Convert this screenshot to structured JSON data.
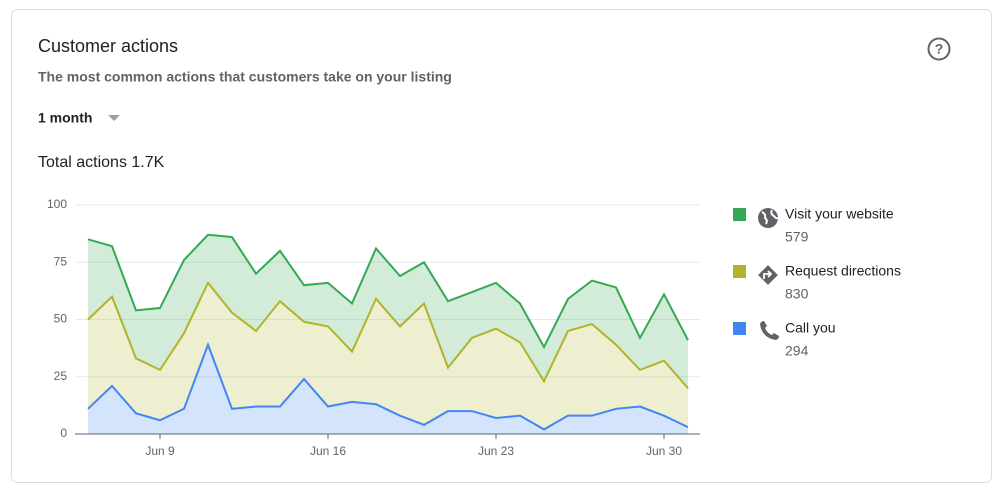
{
  "card": {
    "title": "Customer actions",
    "subtitle": "The most common actions that customers take on your listing",
    "period": "1 month"
  },
  "chart_data": {
    "type": "area",
    "stacked": true,
    "title": "Total actions 1.7K",
    "categories": [
      null,
      null,
      null,
      "Jun 9",
      null,
      null,
      null,
      null,
      null,
      null,
      "Jun 16",
      null,
      null,
      null,
      null,
      null,
      null,
      "Jun 23",
      null,
      null,
      null,
      null,
      null,
      null,
      "Jun 30",
      null
    ],
    "series": [
      {
        "name": "Visit your website",
        "color": "#34a853",
        "total": 579,
        "values": [
          35,
          22,
          21,
          27,
          32,
          21,
          33,
          25,
          22,
          16,
          19,
          21,
          22,
          22,
          18,
          29,
          20,
          20,
          17,
          15,
          14,
          19,
          25,
          14,
          29,
          21
        ]
      },
      {
        "name": "Request directions",
        "color": "#afb42b",
        "total": 830,
        "values": [
          39,
          39,
          24,
          22,
          33,
          27,
          42,
          33,
          46,
          25,
          35,
          22,
          46,
          39,
          53,
          19,
          32,
          39,
          32,
          21,
          37,
          40,
          28,
          16,
          24,
          17
        ]
      },
      {
        "name": "Call you",
        "color": "#4285f4",
        "total": 294,
        "values": [
          11,
          21,
          9,
          6,
          11,
          39,
          11,
          12,
          12,
          24,
          12,
          14,
          13,
          8,
          4,
          10,
          10,
          7,
          8,
          2,
          8,
          8,
          11,
          12,
          8,
          3
        ]
      }
    ],
    "ylim": [
      0,
      100
    ],
    "yticks": [
      0,
      25,
      50,
      75,
      100
    ],
    "grid": true,
    "legend": "right"
  }
}
